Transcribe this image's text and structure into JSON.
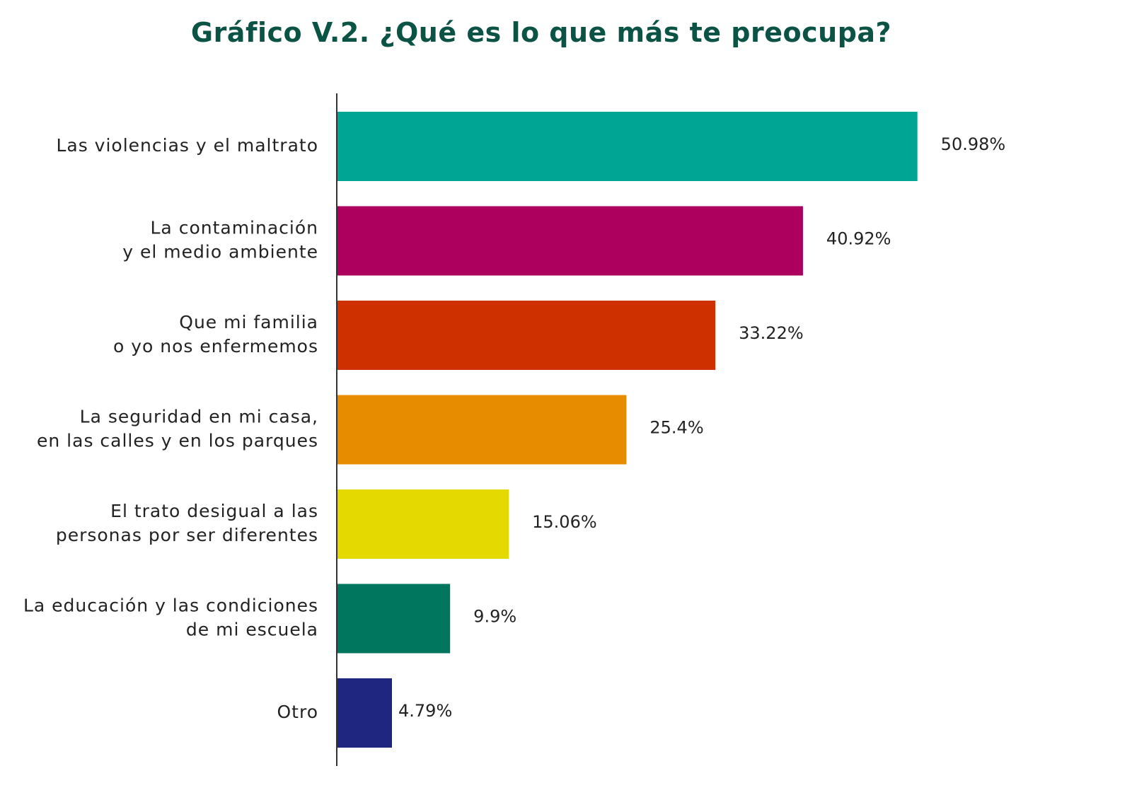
{
  "chart_data": {
    "type": "bar",
    "orientation": "horizontal",
    "title": "Gráfico V.2. ¿Qué es lo que más te preocupa?",
    "categories": [
      [
        "Las violencias y el maltrato"
      ],
      [
        "La contaminación",
        "y el medio ambiente"
      ],
      [
        "Que mi familia",
        "o yo nos enfermemos"
      ],
      [
        "La seguridad en mi casa,",
        "en las calles y en los parques"
      ],
      [
        "El trato desigual a las",
        "personas por ser diferentes"
      ],
      [
        "La educación y las condiciones",
        "de mi escuela"
      ],
      [
        "Otro"
      ]
    ],
    "values": [
      50.98,
      40.92,
      33.22,
      25.4,
      15.06,
      9.9,
      4.79
    ],
    "value_labels": [
      "50.98%",
      "40.92%",
      "33.22%",
      "25.4%",
      "15.06%",
      "9.9%",
      "4.79%"
    ],
    "colors": [
      "#00a693",
      "#ad005e",
      "#cf3000",
      "#e78b00",
      "#e4d900",
      "#00765f",
      "#1f2680"
    ],
    "xlim": [
      0,
      51
    ],
    "grid": false,
    "legend": "none"
  }
}
